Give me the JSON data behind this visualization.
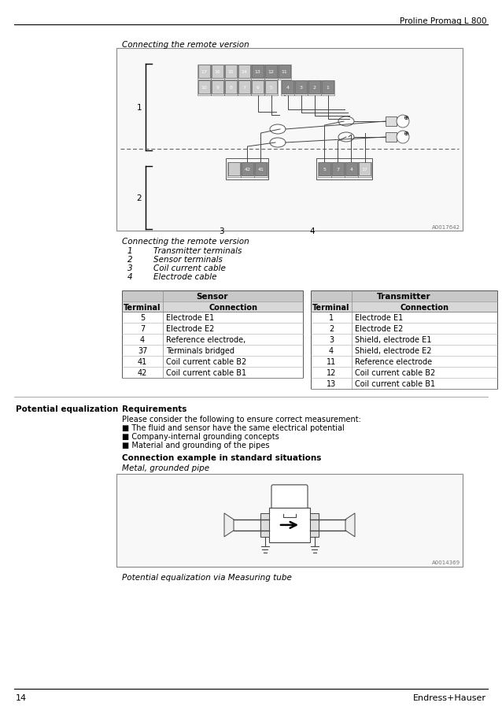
{
  "page_title": "Proline Promag L 800",
  "page_number": "14",
  "page_footer": "Endress+Hauser",
  "section1_caption": "Connecting the remote version",
  "section1_labels": [
    [
      "1",
      "Transmitter terminals"
    ],
    [
      "2",
      "Sensor terminals"
    ],
    [
      "3",
      "Coil current cable"
    ],
    [
      "4",
      "Electrode cable"
    ]
  ],
  "table_sensor_header": [
    "Terminal",
    "Connection"
  ],
  "table_sensor_rows": [
    [
      "5",
      "Electrode E1"
    ],
    [
      "7",
      "Electrode E2"
    ],
    [
      "4",
      "Reference electrode,"
    ],
    [
      "37",
      "Terminals bridged"
    ],
    [
      "41",
      "Coil current cable B2"
    ],
    [
      "42",
      "Coil current cable B1"
    ]
  ],
  "table_transmitter_header": [
    "Terminal",
    "Connection"
  ],
  "table_transmitter_rows": [
    [
      "1",
      "Electrode E1"
    ],
    [
      "2",
      "Electrode E2"
    ],
    [
      "3",
      "Shield, electrode E1"
    ],
    [
      "4",
      "Shield, electrode E2"
    ],
    [
      "11",
      "Reference electrode"
    ],
    [
      "12",
      "Coil current cable B2"
    ],
    [
      "13",
      "Coil current cable B1"
    ]
  ],
  "sensor_label": "Sensor",
  "transmitter_label": "Transmitter",
  "potential_eq_title": "Potential equalization",
  "requirements_title": "Requirements",
  "requirements_text": "Please consider the following to ensure correct measurement:",
  "requirements_bullets": [
    "The fluid and sensor have the same electrical potential",
    "Company-internal grounding concepts",
    "Material and grounding of the pipes"
  ],
  "connection_example_title": "Connection example in standard situations",
  "metal_pipe_label": "Metal, grounded pipe",
  "diagram2_caption": "Potential equalization via Measuring tube",
  "bg_color": "#ffffff",
  "text_color": "#000000",
  "table_header_bg": "#c8c8c8",
  "diagram_border_color": "#888888",
  "ref1": "A0017642",
  "ref2": "A0014369"
}
